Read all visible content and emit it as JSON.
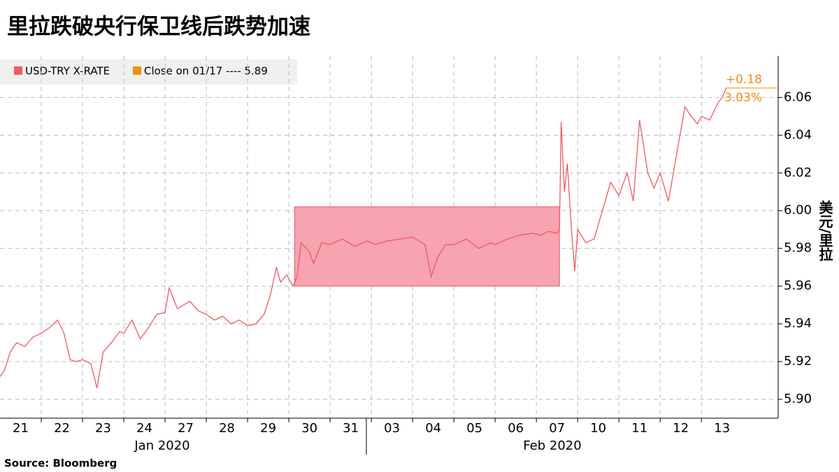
{
  "chart_data": {
    "type": "line",
    "title": "里拉跌破央行保卫线后跌势加速",
    "y_axis_label": "美元/里拉",
    "source": "Source: Bloomberg",
    "legend": [
      {
        "label": "USD-TRY X-RATE",
        "color": "#ef5a64"
      },
      {
        "label": "Close on 01/17 ---- 5.89",
        "color": "#f0900f"
      }
    ],
    "annotations": [
      "+0.18",
      "3.03%"
    ],
    "month_labels": [
      "Jan 2020",
      "Feb 2020"
    ],
    "xlim": [
      0,
      18.86
    ],
    "xticks": [
      {
        "value": 0.5,
        "label": "21"
      },
      {
        "value": 1.5,
        "label": "22"
      },
      {
        "value": 2.5,
        "label": "23"
      },
      {
        "value": 3.5,
        "label": "24"
      },
      {
        "value": 4.5,
        "label": "27"
      },
      {
        "value": 5.5,
        "label": "28"
      },
      {
        "value": 6.5,
        "label": "29"
      },
      {
        "value": 7.5,
        "label": "30"
      },
      {
        "value": 8.5,
        "label": "31"
      },
      {
        "value": 9.5,
        "label": "03"
      },
      {
        "value": 10.5,
        "label": "04"
      },
      {
        "value": 11.5,
        "label": "05"
      },
      {
        "value": 12.5,
        "label": "06"
      },
      {
        "value": 13.5,
        "label": "07"
      },
      {
        "value": 14.5,
        "label": "10"
      },
      {
        "value": 15.5,
        "label": "11"
      },
      {
        "value": 16.5,
        "label": "12"
      },
      {
        "value": 17.5,
        "label": "13"
      }
    ],
    "ylim": [
      5.89,
      6.082
    ],
    "yticks": [
      {
        "value": 5.9,
        "label": "5.90"
      },
      5.92,
      5.94,
      5.96,
      5.98,
      {
        "value": 6,
        "label": "6.00"
      },
      6.02,
      6.04,
      6.06
    ],
    "grid": true,
    "highlight_box": {
      "xlim": [
        7.14,
        13.56
      ],
      "ylim": [
        5.96,
        6.002
      ],
      "color": "#f7a3b0"
    },
    "series": [
      {
        "name": "USD-TRY X-RATE",
        "color": "#ef5a64",
        "x": [
          0,
          0.1,
          0.25,
          0.4,
          0.6,
          0.8,
          1,
          1.2,
          1.4,
          1.55,
          1.7,
          1.85,
          2,
          2.2,
          2.35,
          2.5,
          2.7,
          2.9,
          3,
          3.2,
          3.4,
          3.6,
          3.8,
          4,
          4.1,
          4.3,
          4.6,
          4.8,
          5,
          5.2,
          5.4,
          5.6,
          5.8,
          6,
          6.2,
          6.4,
          6.55,
          6.7,
          6.8,
          6.95,
          7.1,
          7.2,
          7.3,
          7.5,
          7.6,
          7.8,
          8,
          8.3,
          8.6,
          8.9,
          9.1,
          9.4,
          9.7,
          10,
          10.3,
          10.45,
          10.6,
          10.8,
          11,
          11.3,
          11.6,
          11.9,
          12,
          12.3,
          12.6,
          12.9,
          13.1,
          13.3,
          13.5,
          13.56,
          13.6,
          13.68,
          13.75,
          13.85,
          13.93,
          14,
          14.2,
          14.4,
          14.6,
          14.8,
          15,
          15.2,
          15.35,
          15.5,
          15.7,
          15.85,
          16,
          16.2,
          16.4,
          16.6,
          16.75,
          16.9,
          17,
          17.2,
          17.4,
          17.5,
          17.6
        ],
        "values": [
          5.912,
          5.915,
          5.925,
          5.93,
          5.928,
          5.933,
          5.935,
          5.938,
          5.942,
          5.935,
          5.921,
          5.92,
          5.921,
          5.919,
          5.906,
          5.925,
          5.93,
          5.936,
          5.935,
          5.942,
          5.932,
          5.938,
          5.945,
          5.946,
          5.959,
          5.948,
          5.952,
          5.947,
          5.945,
          5.942,
          5.944,
          5.94,
          5.942,
          5.939,
          5.94,
          5.945,
          5.955,
          5.97,
          5.962,
          5.966,
          5.96,
          5.965,
          5.983,
          5.978,
          5.972,
          5.983,
          5.982,
          5.985,
          5.981,
          5.984,
          5.982,
          5.984,
          5.985,
          5.986,
          5.982,
          5.965,
          5.975,
          5.982,
          5.982,
          5.985,
          5.98,
          5.983,
          5.982,
          5.985,
          5.987,
          5.988,
          5.987,
          5.989,
          5.988,
          5.99,
          6.047,
          6.01,
          6.025,
          5.99,
          5.968,
          5.99,
          5.983,
          5.985,
          6.0,
          6.015,
          6.008,
          6.02,
          6.005,
          6.048,
          6.02,
          6.012,
          6.02,
          6.005,
          6.03,
          6.055,
          6.05,
          6.046,
          6.05,
          6.048,
          6.057,
          6.06,
          6.065
        ]
      }
    ]
  }
}
